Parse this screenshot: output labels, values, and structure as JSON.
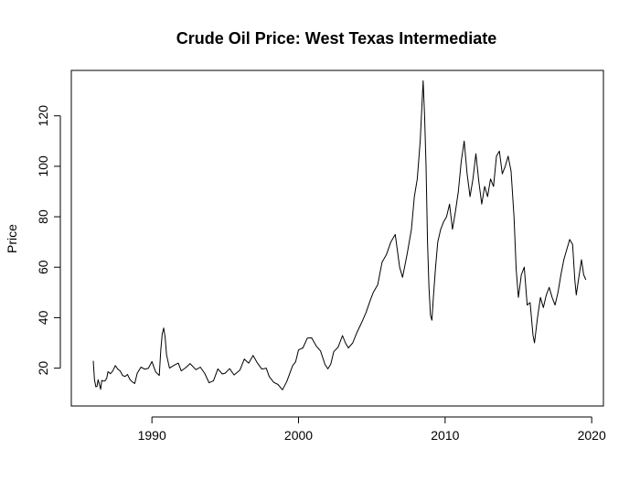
{
  "chart_data": {
    "type": "line",
    "title": "Crude Oil Price: West Texas Intermediate",
    "xlabel": "",
    "ylabel": "Price",
    "xlim": [
      1984.5,
      2020.8
    ],
    "ylim": [
      5,
      138
    ],
    "xticks": [
      1990,
      2000,
      2010,
      2020
    ],
    "yticks": [
      20,
      40,
      60,
      80,
      100,
      120
    ],
    "grid": false,
    "line_color": "#000000",
    "series": [
      {
        "x": [
          1986.0,
          1986.08,
          1986.17,
          1986.25,
          1986.33,
          1986.42,
          1986.5,
          1986.58,
          1986.67,
          1986.75,
          1986.83,
          1986.92,
          1987.0,
          1987.17,
          1987.33,
          1987.5,
          1987.67,
          1987.83,
          1988.0,
          1988.17,
          1988.33,
          1988.5,
          1988.67,
          1988.83,
          1989.0,
          1989.25,
          1989.5,
          1989.75,
          1990.0,
          1990.25,
          1990.5,
          1990.6,
          1990.7,
          1990.8,
          1990.9,
          1991.0,
          1991.2,
          1991.5,
          1991.8,
          1992.0,
          1992.3,
          1992.6,
          1993.0,
          1993.3,
          1993.6,
          1993.9,
          1994.2,
          1994.5,
          1994.8,
          1995.0,
          1995.3,
          1995.6,
          1996.0,
          1996.3,
          1996.6,
          1996.9,
          1997.2,
          1997.5,
          1997.8,
          1998.0,
          1998.3,
          1998.6,
          1998.9,
          1999.0,
          1999.2,
          1999.4,
          1999.6,
          1999.8,
          2000.0,
          2000.3,
          2000.6,
          2000.9,
          2001.2,
          2001.5,
          2001.8,
          2002.0,
          2002.2,
          2002.4,
          2002.7,
          2003.0,
          2003.2,
          2003.4,
          2003.7,
          2004.0,
          2004.3,
          2004.6,
          2004.9,
          2005.1,
          2005.4,
          2005.7,
          2006.0,
          2006.3,
          2006.6,
          2006.9,
          2007.1,
          2007.4,
          2007.7,
          2007.9,
          2008.1,
          2008.3,
          2008.5,
          2008.6,
          2008.7,
          2008.8,
          2008.9,
          2009.0,
          2009.1,
          2009.2,
          2009.35,
          2009.5,
          2009.7,
          2009.9,
          2010.1,
          2010.3,
          2010.5,
          2010.7,
          2010.9,
          2011.1,
          2011.3,
          2011.5,
          2011.7,
          2011.9,
          2012.1,
          2012.3,
          2012.5,
          2012.7,
          2012.9,
          2013.1,
          2013.3,
          2013.5,
          2013.7,
          2013.9,
          2014.1,
          2014.3,
          2014.5,
          2014.7,
          2014.85,
          2015.0,
          2015.2,
          2015.4,
          2015.6,
          2015.8,
          2016.0,
          2016.1,
          2016.3,
          2016.5,
          2016.7,
          2016.9,
          2017.1,
          2017.3,
          2017.5,
          2017.7,
          2017.9,
          2018.1,
          2018.3,
          2018.5,
          2018.7,
          2018.85,
          2018.95,
          2019.1,
          2019.3,
          2019.45,
          2019.6
        ],
        "y": [
          22.9,
          15.5,
          12.6,
          12.8,
          15.4,
          13.5,
          11.6,
          15.1,
          14.9,
          14.9,
          15.2,
          16.1,
          18.6,
          17.8,
          18.9,
          21.0,
          19.6,
          18.9,
          17.1,
          16.7,
          17.5,
          15.5,
          14.5,
          13.9,
          18.0,
          20.4,
          19.6,
          19.9,
          22.6,
          18.5,
          17.1,
          26.9,
          33.5,
          35.9,
          32.3,
          25.2,
          20.0,
          21.1,
          22.0,
          18.9,
          20.2,
          21.8,
          19.4,
          20.4,
          17.9,
          14.2,
          15.0,
          19.7,
          17.7,
          18.0,
          19.8,
          17.3,
          19.2,
          23.6,
          22.0,
          25.0,
          22.0,
          19.6,
          20.0,
          16.7,
          14.4,
          13.5,
          11.4,
          12.5,
          14.7,
          17.9,
          21.0,
          22.5,
          27.2,
          28.0,
          31.9,
          32.0,
          28.8,
          26.8,
          21.5,
          19.7,
          21.6,
          26.5,
          28.3,
          32.9,
          30.0,
          28.0,
          30.0,
          34.3,
          38.0,
          42.0,
          47.0,
          50.0,
          53.0,
          62.0,
          65.0,
          70.0,
          73.0,
          60.0,
          56.0,
          65.0,
          75.0,
          88.0,
          95.0,
          110.0,
          133.9,
          120.0,
          100.0,
          70.0,
          52.0,
          41.0,
          39.0,
          48.0,
          60.0,
          70.0,
          75.0,
          78.0,
          80.0,
          85.0,
          75.0,
          82.0,
          90.0,
          102.0,
          110.0,
          97.0,
          88.0,
          95.0,
          105.0,
          94.0,
          85.0,
          92.0,
          88.0,
          95.0,
          92.0,
          104.0,
          106.0,
          97.0,
          100.0,
          104.0,
          98.0,
          80.0,
          59.0,
          48.0,
          57.0,
          60.0,
          45.0,
          46.0,
          33.0,
          30.0,
          40.0,
          48.0,
          44.0,
          49.0,
          52.0,
          48.0,
          45.0,
          50.0,
          57.0,
          63.0,
          67.0,
          71.0,
          69.0,
          55.0,
          49.0,
          55.0,
          63.0,
          57.0,
          55.0
        ]
      }
    ]
  }
}
